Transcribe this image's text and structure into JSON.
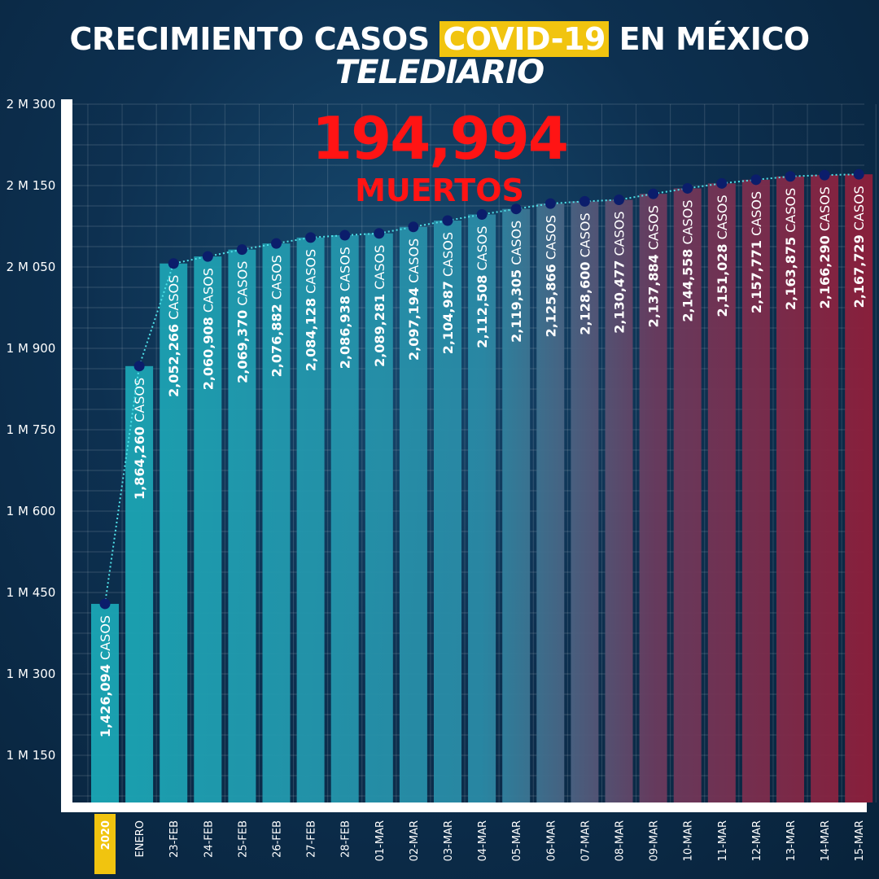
{
  "header": {
    "title_pre": "CRECIMIENTO CASOS ",
    "title_highlight": "COVID-19",
    "title_post": " EN MÉXICO",
    "brand": "TELEDIARIO"
  },
  "deaths": {
    "value": "194,994",
    "label": "MUERTOS"
  },
  "colors": {
    "highlight": "#f1c40f",
    "deaths": "#ff1414",
    "bar_start": "#1aa7b5",
    "bar_end": "#8f1e3a",
    "dots": "#0b1d6b"
  },
  "chart_data": {
    "type": "bar",
    "categories": [
      "2020",
      "ENERO",
      "23-FEB",
      "24-FEB",
      "25-FEB",
      "26-FEB",
      "27-FEB",
      "28-FEB",
      "01-MAR",
      "02-MAR",
      "03-MAR",
      "04-MAR",
      "05-MAR",
      "06-MAR",
      "07-MAR",
      "08-MAR",
      "09-MAR",
      "10-MAR",
      "11-MAR",
      "12-MAR",
      "13-MAR",
      "14-MAR",
      "15-MAR"
    ],
    "values": [
      1426094,
      1864260,
      2052266,
      2060908,
      2069370,
      2076882,
      2084128,
      2086938,
      2089281,
      2097194,
      2104987,
      2112508,
      2119305,
      2125866,
      2128600,
      2130477,
      2137884,
      2144558,
      2151028,
      2157771,
      2163875,
      2166290,
      2167729
    ],
    "value_labels": [
      "1,426,094",
      "1,864,260",
      "2,052,266",
      "2,060,908",
      "2,069,370",
      "2,076,882",
      "2,084,128",
      "2,086,938",
      "2,089,281",
      "2,097,194",
      "2,104,987",
      "2,112,508",
      "2,119,305",
      "2,125,866",
      "2,128,600",
      "2,130,477",
      "2,137,884",
      "2,144,558",
      "2,151,028",
      "2,157,771",
      "2,163,875",
      "2,166,290",
      "2,167,729"
    ],
    "value_suffix": "CASOS",
    "highlight_category": "2020",
    "yaxis": {
      "ticks": [
        {
          "value": 1150000,
          "label": "1 M 150"
        },
        {
          "value": 1300000,
          "label": "1 M 300"
        },
        {
          "value": 1450000,
          "label": "1 M 450"
        },
        {
          "value": 1600000,
          "label": "1 M 600"
        },
        {
          "value": 1750000,
          "label": "1 M 750"
        },
        {
          "value": 1900000,
          "label": "1 M 900"
        },
        {
          "value": 2050000,
          "label": "2 M 050"
        },
        {
          "value": 2150000,
          "label": "2 M 150"
        },
        {
          "value": 2300000,
          "label": "2 M 300"
        }
      ]
    },
    "title": "CRECIMIENTO CASOS COVID-19 EN MÉXICO",
    "grid": true
  }
}
